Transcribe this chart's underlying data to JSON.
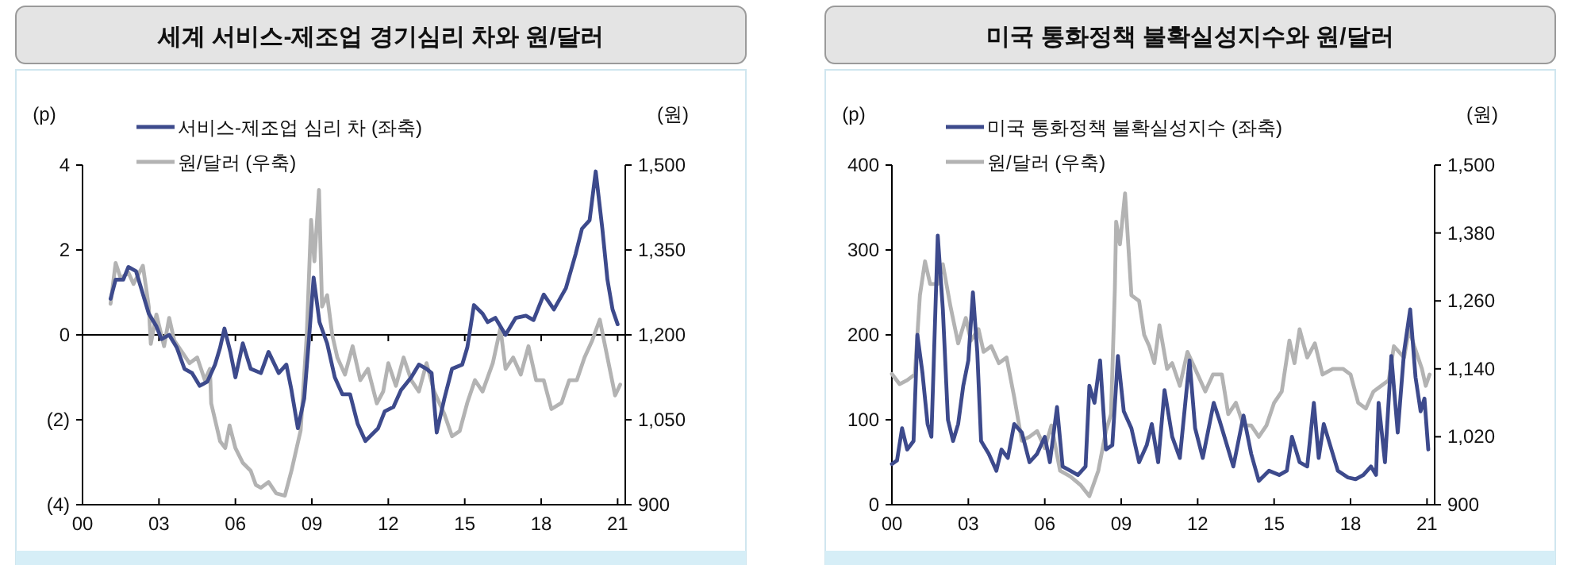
{
  "chart_data": [
    {
      "type": "line",
      "title": "세계 서비스-제조업 경기심리 차와 원/달러",
      "ylabel": "(p)",
      "y2label": "(원)",
      "legend": "top left",
      "xlim": [
        0,
        21.3
      ],
      "xticks": [
        {
          "value": 0,
          "label": "00"
        },
        {
          "value": 3,
          "label": "03"
        },
        {
          "value": 6,
          "label": "06"
        },
        {
          "value": 9,
          "label": "09"
        },
        {
          "value": 12,
          "label": "12"
        },
        {
          "value": 15,
          "label": "15"
        },
        {
          "value": 18,
          "label": "18"
        },
        {
          "value": 21,
          "label": "21"
        }
      ],
      "ylim": [
        -4,
        4
      ],
      "yticks": [
        {
          "value": -4,
          "label": "(4)"
        },
        {
          "value": -2,
          "label": "(2)"
        },
        0,
        2,
        4
      ],
      "y2lim": [
        900,
        1500
      ],
      "y2ticks": [
        900,
        {
          "value": 1050,
          "label": "1,050"
        },
        {
          "value": 1200,
          "label": "1,200"
        },
        {
          "value": 1350,
          "label": "1,350"
        },
        {
          "value": 1500,
          "label": "1,500"
        }
      ],
      "ref_lines": [
        {
          "axis": "y",
          "value": 0,
          "color": "#000000"
        }
      ],
      "series": [
        {
          "name": "원/달러 (우축)",
          "color": "#b3b3b3",
          "axis": "y2",
          "x": [
            1.1,
            1.3,
            1.5,
            1.8,
            2.0,
            2.37,
            2.6,
            2.68,
            2.9,
            3.2,
            3.4,
            3.6,
            3.9,
            4.2,
            4.5,
            4.8,
            5.0,
            5.05,
            5.4,
            5.6,
            5.77,
            6.0,
            6.29,
            6.6,
            6.8,
            7.0,
            7.3,
            7.6,
            7.94,
            8.2,
            8.56,
            8.8,
            8.97,
            9.1,
            9.28,
            9.4,
            9.6,
            9.8,
            10.0,
            10.3,
            10.6,
            10.9,
            11.2,
            11.55,
            11.8,
            12.0,
            12.3,
            12.6,
            12.9,
            13.2,
            13.5,
            13.8,
            14.2,
            14.5,
            14.8,
            15.1,
            15.4,
            15.7,
            16.1,
            16.4,
            16.6,
            16.9,
            17.2,
            17.5,
            17.8,
            18.1,
            18.4,
            18.8,
            19.1,
            19.4,
            19.7,
            20.0,
            20.3,
            20.6,
            20.9,
            21.1
          ],
          "values": [
            1255,
            1327,
            1300,
            1310,
            1290,
            1322,
            1250,
            1184,
            1236,
            1180,
            1230,
            1190,
            1170,
            1150,
            1160,
            1120,
            1140,
            1079,
            1012,
            1000,
            1040,
            1000,
            974,
            960,
            935,
            930,
            940,
            920,
            916,
            960,
            1031,
            1200,
            1403,
            1330,
            1456,
            1250,
            1270,
            1200,
            1160,
            1130,
            1180,
            1120,
            1140,
            1079,
            1100,
            1150,
            1110,
            1160,
            1120,
            1100,
            1150,
            1100,
            1060,
            1021,
            1030,
            1080,
            1120,
            1100,
            1150,
            1212,
            1140,
            1160,
            1130,
            1180,
            1120,
            1120,
            1069,
            1080,
            1120,
            1120,
            1160,
            1190,
            1227,
            1160,
            1093,
            1112
          ]
        },
        {
          "name": "서비스-제조업 심리 차 (좌축)",
          "color": "#3d4a8c",
          "x": [
            1.1,
            1.3,
            1.6,
            1.8,
            2.1,
            2.4,
            2.6,
            2.9,
            3.1,
            3.4,
            3.7,
            4.0,
            4.3,
            4.6,
            4.9,
            5.2,
            5.4,
            5.57,
            5.8,
            6.0,
            6.29,
            6.6,
            7.0,
            7.3,
            7.7,
            8.0,
            8.2,
            8.45,
            8.7,
            8.9,
            9.07,
            9.3,
            9.6,
            9.9,
            10.2,
            10.5,
            10.8,
            11.1,
            11.6,
            11.86,
            12.2,
            12.5,
            12.9,
            13.2,
            13.5,
            13.7,
            13.9,
            14.2,
            14.5,
            14.9,
            15.1,
            15.36,
            15.7,
            15.9,
            16.2,
            16.6,
            17.0,
            17.4,
            17.7,
            18.1,
            18.5,
            18.97,
            19.35,
            19.6,
            19.9,
            20.14,
            20.4,
            20.6,
            20.8,
            21.0
          ],
          "values": [
            0.85,
            1.3,
            1.3,
            1.6,
            1.5,
            0.9,
            0.5,
            0.2,
            -0.1,
            0,
            -0.3,
            -0.8,
            -0.9,
            -1.2,
            -1.1,
            -0.7,
            -0.3,
            0.15,
            -0.4,
            -1.0,
            -0.2,
            -0.8,
            -0.9,
            -0.4,
            -0.9,
            -0.7,
            -1.3,
            -2.2,
            -1.5,
            0,
            1.35,
            0.3,
            -0.2,
            -1.0,
            -1.4,
            -1.4,
            -2.1,
            -2.5,
            -2.2,
            -1.8,
            -1.7,
            -1.3,
            -1.0,
            -0.7,
            -0.8,
            -0.9,
            -2.3,
            -1.5,
            -0.8,
            -0.7,
            -0.3,
            0.7,
            0.5,
            0.3,
            0.4,
            0.0,
            0.4,
            0.45,
            0.35,
            0.95,
            0.6,
            1.1,
            1.9,
            2.5,
            2.7,
            3.85,
            2.5,
            1.3,
            0.6,
            0.25
          ]
        }
      ]
    },
    {
      "type": "line",
      "title": "미국 통화정책 불확실성지수와 원/달러",
      "ylabel": "(p)",
      "y2label": "(원)",
      "legend": "top left",
      "xlim": [
        0,
        21.3
      ],
      "xticks": [
        {
          "value": 0,
          "label": "00"
        },
        {
          "value": 3,
          "label": "03"
        },
        {
          "value": 6,
          "label": "06"
        },
        {
          "value": 9,
          "label": "09"
        },
        {
          "value": 12,
          "label": "12"
        },
        {
          "value": 15,
          "label": "15"
        },
        {
          "value": 18,
          "label": "18"
        },
        {
          "value": 21,
          "label": "21"
        }
      ],
      "ylim": [
        0,
        400
      ],
      "yticks": [
        0,
        100,
        200,
        300,
        400
      ],
      "y2lim": [
        900,
        1500
      ],
      "y2ticks": [
        900,
        {
          "value": 1020,
          "label": "1,020"
        },
        {
          "value": 1140,
          "label": "1,140"
        },
        {
          "value": 1260,
          "label": "1,260"
        },
        {
          "value": 1380,
          "label": "1,380"
        },
        {
          "value": 1500,
          "label": "1,500"
        }
      ],
      "series": [
        {
          "name": "원/달러 (우축)",
          "color": "#b3b3b3",
          "axis": "y2",
          "x": [
            0.0,
            0.3,
            0.6,
            0.9,
            1.1,
            1.3,
            1.5,
            1.8,
            2.0,
            2.3,
            2.6,
            2.9,
            3.1,
            3.4,
            3.6,
            3.9,
            4.2,
            4.5,
            4.8,
            5.1,
            5.4,
            5.7,
            6.0,
            6.26,
            6.6,
            7.0,
            7.4,
            7.75,
            8.1,
            8.4,
            8.6,
            8.75,
            8.8,
            8.95,
            9.15,
            9.4,
            9.7,
            9.9,
            10.1,
            10.3,
            10.5,
            10.8,
            11.0,
            11.3,
            11.6,
            11.9,
            12.3,
            12.6,
            12.95,
            13.2,
            13.5,
            13.8,
            14.1,
            14.4,
            14.7,
            15.0,
            15.3,
            15.6,
            15.8,
            16.0,
            16.3,
            16.6,
            16.9,
            17.3,
            17.7,
            18.0,
            18.3,
            18.6,
            18.9,
            19.2,
            19.5,
            19.7,
            20.1,
            20.3,
            20.5,
            20.8,
            20.95,
            21.1
          ],
          "values": [
            1131,
            1113,
            1120,
            1130,
            1270,
            1330,
            1290,
            1290,
            1325,
            1250,
            1185,
            1230,
            1190,
            1210,
            1170,
            1180,
            1150,
            1160,
            1090,
            1013,
            1020,
            1030,
            1000,
            1040,
            960,
            950,
            935,
            915,
            960,
            1030,
            1060,
            1280,
            1400,
            1360,
            1450,
            1270,
            1260,
            1200,
            1180,
            1150,
            1217,
            1140,
            1150,
            1110,
            1170,
            1140,
            1100,
            1130,
            1130,
            1060,
            1080,
            1040,
            1040,
            1020,
            1040,
            1080,
            1100,
            1190,
            1150,
            1210,
            1160,
            1185,
            1130,
            1140,
            1140,
            1130,
            1080,
            1070,
            1100,
            1110,
            1120,
            1180,
            1160,
            1210,
            1180,
            1140,
            1110,
            1130
          ]
        },
        {
          "name": "미국 통화정책 불확실성지수 (좌축)",
          "color": "#3d4a8c",
          "x": [
            0.0,
            0.2,
            0.4,
            0.6,
            0.85,
            1.0,
            1.2,
            1.4,
            1.55,
            1.8,
            2.0,
            2.2,
            2.4,
            2.6,
            2.8,
            3.0,
            3.18,
            3.35,
            3.5,
            3.8,
            4.1,
            4.3,
            4.55,
            4.8,
            5.1,
            5.4,
            5.7,
            6.0,
            6.2,
            6.48,
            6.7,
            7.0,
            7.3,
            7.6,
            7.75,
            7.95,
            8.17,
            8.4,
            8.65,
            8.87,
            9.1,
            9.4,
            9.7,
            10.0,
            10.2,
            10.45,
            10.7,
            11.0,
            11.3,
            11.68,
            11.9,
            12.2,
            12.63,
            12.85,
            13.1,
            13.4,
            13.8,
            14.1,
            14.4,
            14.8,
            15.2,
            15.5,
            15.7,
            16.0,
            16.3,
            16.56,
            16.75,
            16.95,
            17.2,
            17.5,
            17.9,
            18.2,
            18.5,
            18.8,
            19.0,
            19.1,
            19.35,
            19.6,
            19.85,
            20.1,
            20.34,
            20.55,
            20.75,
            20.9,
            21.05
          ],
          "values": [
            48,
            52,
            90,
            65,
            75,
            200,
            155,
            95,
            80,
            317,
            230,
            100,
            75,
            95,
            140,
            170,
            250,
            180,
            75,
            60,
            40,
            65,
            55,
            95,
            85,
            50,
            60,
            80,
            50,
            115,
            45,
            40,
            35,
            45,
            140,
            120,
            170,
            65,
            70,
            175,
            110,
            90,
            50,
            70,
            95,
            50,
            135,
            80,
            55,
            170,
            90,
            55,
            120,
            100,
            75,
            45,
            105,
            60,
            28,
            40,
            35,
            40,
            80,
            50,
            45,
            120,
            55,
            95,
            70,
            40,
            32,
            30,
            35,
            45,
            35,
            120,
            50,
            175,
            85,
            180,
            230,
            150,
            110,
            125,
            65
          ]
        }
      ]
    }
  ]
}
